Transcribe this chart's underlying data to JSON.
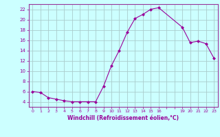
{
  "x": [
    0,
    1,
    2,
    3,
    4,
    5,
    6,
    7,
    8,
    9,
    10,
    11,
    12,
    13,
    14,
    15,
    16,
    19,
    20,
    21,
    22,
    23
  ],
  "y": [
    6,
    5.8,
    4.8,
    4.5,
    4.2,
    4.0,
    4.0,
    4.0,
    4.0,
    7.0,
    11.0,
    14.0,
    17.5,
    20.2,
    21.0,
    22.0,
    22.3,
    18.5,
    15.5,
    15.8,
    15.3,
    12.5
  ],
  "line_color": "#990099",
  "marker": "D",
  "marker_size": 2.0,
  "bg_color": "#ccffff",
  "grid_color": "#aacccc",
  "spine_color": "#993399",
  "xlabel": "Windchill (Refroidissement éolien,°C)",
  "xlabel_color": "#990099",
  "tick_color": "#990099",
  "xlim": [
    -0.5,
    23.5
  ],
  "ylim": [
    3.0,
    23.0
  ],
  "yticks": [
    4,
    6,
    8,
    10,
    12,
    14,
    16,
    18,
    20,
    22
  ],
  "xticks": [
    0,
    1,
    2,
    3,
    4,
    5,
    6,
    7,
    8,
    9,
    10,
    11,
    12,
    13,
    14,
    15,
    16,
    17,
    18,
    19,
    20,
    21,
    22,
    23
  ],
  "xtick_labels": [
    "0",
    "1",
    "2",
    "3",
    "4",
    "5",
    "6",
    "7",
    "8",
    "9",
    "10",
    "11",
    "12",
    "13",
    "14",
    "15",
    "16",
    "",
    "",
    "19",
    "20",
    "21",
    "22",
    "23"
  ]
}
